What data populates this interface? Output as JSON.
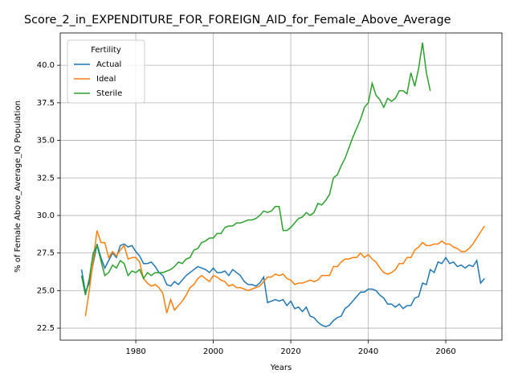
{
  "chart_data": {
    "type": "line",
    "title": "Score_2_in_EXPENDITURE_FOR_FOREIGN_AID_for_Female_Above_Average",
    "xlabel": "Years",
    "ylabel": "% of Female Above_Average_IQ Population",
    "legend_title": "Fertility",
    "legend": "upper left",
    "grid": true,
    "xlim": [
      1960.5,
      2074.5
    ],
    "ylim": [
      21.7,
      42.15
    ],
    "xticks": [
      1980,
      2000,
      2020,
      2040,
      2060
    ],
    "yticks": [
      22.5,
      {
        "value": 25,
        "label": "25.0"
      },
      27.5,
      {
        "value": 30,
        "label": "30.0"
      },
      32.5,
      {
        "value": 35,
        "label": "35.0"
      },
      37.5,
      {
        "value": 40,
        "label": "40.0"
      }
    ],
    "x": [
      1966,
      1967,
      1968,
      1969,
      1970,
      1971,
      1972,
      1973,
      1974,
      1975,
      1976,
      1977,
      1978,
      1979,
      1980,
      1981,
      1982,
      1983,
      1984,
      1985,
      1986,
      1987,
      1988,
      1989,
      1990,
      1991,
      1992,
      1993,
      1994,
      1995,
      1996,
      1997,
      1998,
      1999,
      2000,
      2001,
      2002,
      2003,
      2004,
      2005,
      2006,
      2007,
      2008,
      2009,
      2010,
      2011,
      2012,
      2013,
      2014,
      2015,
      2016,
      2017,
      2018,
      2019,
      2020,
      2021,
      2022,
      2023,
      2024,
      2025,
      2026,
      2027,
      2028,
      2029,
      2030,
      2031,
      2032,
      2033,
      2034,
      2035,
      2036,
      2037,
      2038,
      2039,
      2040,
      2041,
      2042,
      2043,
      2044,
      2045,
      2046,
      2047,
      2048,
      2049,
      2050,
      2051,
      2052,
      2053,
      2054,
      2055,
      2056,
      2057,
      2058,
      2059,
      2060,
      2061,
      2062,
      2063,
      2064,
      2065,
      2066,
      2067,
      2068,
      2069,
      2070
    ],
    "series": [
      {
        "name": "Actual",
        "color": "#1f77b4",
        "values": [
          26.4,
          24.9,
          25.5,
          26.8,
          28.1,
          27.2,
          26.5,
          27.0,
          27.5,
          27.2,
          28.0,
          28.1,
          27.9,
          28.0,
          27.6,
          27.3,
          26.8,
          26.8,
          26.9,
          26.6,
          26.2,
          26.0,
          25.4,
          25.3,
          25.6,
          25.4,
          25.7,
          26.0,
          26.2,
          26.4,
          26.6,
          26.5,
          26.4,
          26.2,
          26.5,
          26.2,
          26.2,
          26.3,
          26.0,
          26.4,
          26.2,
          26.0,
          25.6,
          25.4,
          25.4,
          25.3,
          25.5,
          25.9,
          24.2,
          24.3,
          24.4,
          24.3,
          24.4,
          24.0,
          24.3,
          23.8,
          23.9,
          23.6,
          23.9,
          23.3,
          23.2,
          22.9,
          22.7,
          22.6,
          22.7,
          23.0,
          23.2,
          23.3,
          23.8,
          24.0,
          24.3,
          24.6,
          24.9,
          24.9,
          25.1,
          25.1,
          25.0,
          24.7,
          24.5,
          24.1,
          24.1,
          23.9,
          24.1,
          23.8,
          24.0,
          24.0,
          24.5,
          24.6,
          25.5,
          25.4,
          26.4,
          26.2,
          26.9,
          26.8,
          27.2,
          26.8,
          26.9,
          26.6,
          26.7,
          26.5,
          26.7,
          26.6,
          27.0,
          25.5,
          25.8
        ]
      },
      {
        "name": "Ideal",
        "color": "#ff7f0e",
        "values": [
          null,
          23.3,
          25.0,
          27.0,
          29.0,
          28.2,
          28.2,
          27.2,
          27.6,
          27.3,
          27.7,
          28.0,
          27.1,
          27.2,
          27.2,
          26.9,
          25.8,
          25.5,
          25.3,
          25.4,
          25.2,
          24.8,
          23.5,
          24.4,
          23.7,
          24.0,
          24.3,
          24.7,
          25.2,
          25.4,
          25.8,
          26.0,
          25.8,
          25.6,
          26.0,
          25.9,
          25.7,
          25.6,
          25.3,
          25.4,
          25.2,
          25.2,
          25.1,
          25.0,
          25.1,
          25.2,
          25.3,
          25.6,
          25.9,
          25.9,
          26.1,
          26.0,
          26.1,
          25.8,
          25.7,
          25.4,
          25.5,
          25.5,
          25.6,
          25.7,
          25.6,
          25.7,
          26.0,
          26.0,
          26.0,
          26.6,
          26.6,
          26.9,
          27.1,
          27.1,
          27.2,
          27.2,
          27.5,
          27.2,
          27.4,
          27.1,
          26.9,
          26.5,
          26.2,
          26.1,
          26.2,
          26.4,
          26.8,
          26.8,
          27.2,
          27.2,
          27.7,
          27.9,
          28.2,
          28.0,
          28.0,
          28.1,
          28.1,
          28.3,
          28.1,
          28.1,
          27.9,
          27.8,
          27.6,
          27.6,
          27.8,
          28.1,
          28.5,
          28.9,
          29.3
        ]
      },
      {
        "name": "Sterile",
        "color": "#2ca02c",
        "values": [
          26.0,
          24.7,
          25.8,
          27.5,
          28.0,
          27.0,
          26.0,
          26.2,
          26.7,
          26.5,
          27.0,
          26.8,
          26.0,
          26.3,
          26.2,
          26.4,
          25.8,
          26.2,
          26.0,
          26.2,
          26.2,
          26.2,
          26.3,
          26.4,
          26.6,
          26.9,
          26.8,
          27.1,
          27.2,
          27.7,
          27.8,
          28.2,
          28.3,
          28.5,
          28.5,
          28.8,
          28.8,
          29.2,
          29.3,
          29.3,
          29.5,
          29.5,
          29.6,
          29.7,
          29.7,
          29.8,
          30.0,
          30.3,
          30.2,
          30.3,
          30.6,
          30.6,
          29.0,
          29.0,
          29.2,
          29.5,
          29.8,
          29.9,
          30.2,
          30.0,
          30.2,
          30.8,
          30.7,
          31.0,
          31.4,
          32.5,
          32.7,
          33.3,
          33.8,
          34.5,
          35.2,
          35.8,
          36.4,
          37.2,
          37.5,
          38.8,
          38.0,
          37.7,
          37.2,
          37.8,
          37.6,
          37.8,
          38.3,
          38.3,
          38.1,
          39.5,
          38.6,
          39.8,
          41.5,
          39.5,
          38.3,
          null,
          null,
          null,
          null,
          null,
          null,
          null,
          null,
          null,
          null,
          null,
          null,
          null,
          null
        ]
      }
    ]
  }
}
